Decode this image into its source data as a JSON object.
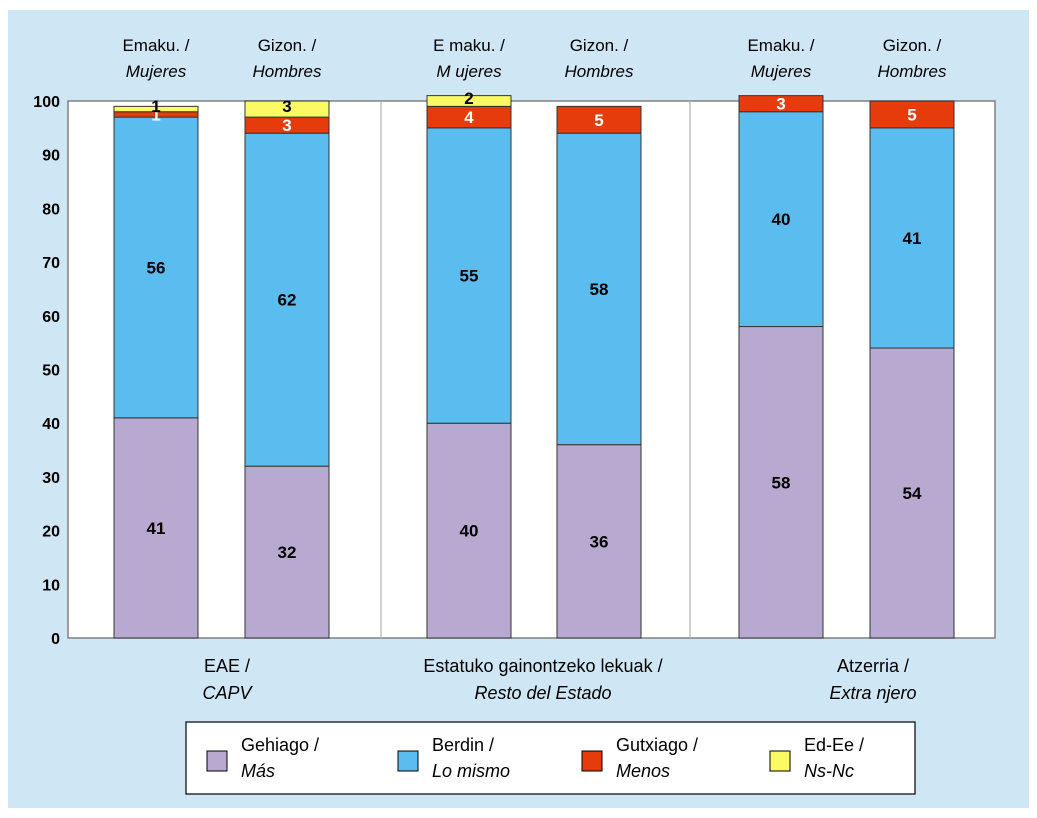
{
  "chart_data": {
    "type": "bar",
    "stacked": true,
    "ylim": [
      0,
      100
    ],
    "yticks": [
      "0",
      "10",
      "20",
      "30",
      "40",
      "50",
      "60",
      "70",
      "80",
      "90",
      "100"
    ],
    "groups": [
      {
        "line1": "EAE /",
        "line2": "CAPV"
      },
      {
        "line1": "Estatuko gainontzeko lekuak /",
        "line2": "Resto del Estado"
      },
      {
        "line1": "Atzerria /",
        "line2": "Extra njero"
      }
    ],
    "categories": [
      {
        "top1": "Emaku. /",
        "top2": "Mujeres"
      },
      {
        "top1": "Gizon. /",
        "top2": "Hombres"
      },
      {
        "top1": "E maku. /",
        "top2": "M ujeres"
      },
      {
        "top1": "Gizon. /",
        "top2": "Hombres"
      },
      {
        "top1": "Emaku. /",
        "top2": "Mujeres"
      },
      {
        "top1": "Gizon. /",
        "top2": "Hombres"
      }
    ],
    "series": [
      {
        "line1": "Gehiago /",
        "line2": "Más",
        "color": "#b8a9d0",
        "values": [
          41,
          32,
          40,
          36,
          58,
          54
        ],
        "labels": [
          "41",
          "32",
          "40",
          "36",
          "58",
          "54"
        ]
      },
      {
        "line1": "Berdin /",
        "line2": "Lo mismo",
        "color": "#5bbcf0",
        "values": [
          56,
          62,
          55,
          58,
          40,
          41
        ],
        "labels": [
          "56",
          "62",
          "55",
          "58",
          "40",
          "41"
        ]
      },
      {
        "line1": "Gutxiago /",
        "line2": "Menos",
        "color": "#e63c0c",
        "values": [
          1,
          3,
          4,
          5,
          3,
          5
        ],
        "labels": [
          "1",
          "3",
          "4",
          "5",
          "3",
          "5"
        ]
      },
      {
        "line1": "Ed-Ee /",
        "line2": "Ns-Nc",
        "color": "#fafa64",
        "values": [
          1,
          3,
          2,
          0,
          0,
          0
        ],
        "labels": [
          "1",
          "3",
          "2",
          "",
          "",
          ""
        ]
      }
    ],
    "label_colors": [
      "#000000",
      "#000000",
      "#ffffff",
      "#000000"
    ]
  }
}
